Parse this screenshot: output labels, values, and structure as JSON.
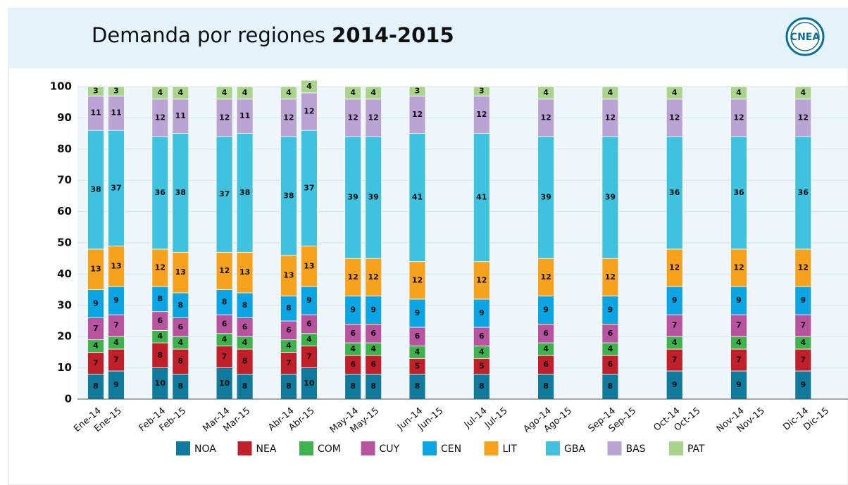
{
  "chart_data": {
    "type": "stacked_bar",
    "title": "Demanda por regiones",
    "title_bold": "2014-2015",
    "logo": "CNEA",
    "categories": [
      "Ene-14",
      "Ene-15",
      "Feb-14",
      "Feb-15",
      "Mar-14",
      "Mar-15",
      "Abr-14",
      "Abr-15",
      "May-14",
      "May-15",
      "Jun-14",
      "Jun-15",
      "Jul-14",
      "Jul-15",
      "Ago-14",
      "Ago-15",
      "Sep-14",
      "Sep-15",
      "Oct-14",
      "Oct-15",
      "Nov-14",
      "Nov-15",
      "Dic-14",
      "Dic-15"
    ],
    "series": [
      {
        "name": "NOA",
        "color": "#0f7a9c",
        "values": [
          8,
          9,
          10,
          8,
          10,
          8,
          8,
          10,
          8,
          8,
          8,
          null,
          8,
          null,
          8,
          null,
          8,
          null,
          9,
          null,
          9,
          null,
          9,
          null
        ]
      },
      {
        "name": "NEA",
        "color": "#c1202b",
        "values": [
          7,
          7,
          8,
          8,
          7,
          8,
          7,
          7,
          6,
          6,
          5,
          null,
          5,
          null,
          6,
          null,
          6,
          null,
          7,
          null,
          7,
          null,
          7,
          null
        ]
      },
      {
        "name": "COM",
        "color": "#3cb44b",
        "values": [
          4,
          4,
          4,
          4,
          4,
          4,
          4,
          4,
          4,
          4,
          4,
          null,
          4,
          null,
          4,
          null,
          4,
          null,
          4,
          null,
          4,
          null,
          4,
          null
        ]
      },
      {
        "name": "CUY",
        "color": "#b8549f",
        "values": [
          7,
          7,
          6,
          6,
          6,
          6,
          6,
          6,
          6,
          6,
          6,
          null,
          6,
          null,
          6,
          null,
          6,
          null,
          7,
          null,
          7,
          null,
          7,
          null
        ]
      },
      {
        "name": "CEN",
        "color": "#0ba5e4",
        "values": [
          9,
          9,
          8,
          8,
          8,
          8,
          8,
          9,
          9,
          9,
          9,
          null,
          9,
          null,
          9,
          null,
          9,
          null,
          9,
          null,
          9,
          null,
          9,
          null
        ]
      },
      {
        "name": "LIT",
        "color": "#f7a21c",
        "values": [
          13,
          13,
          12,
          13,
          12,
          13,
          13,
          13,
          12,
          12,
          12,
          null,
          12,
          null,
          12,
          null,
          12,
          null,
          12,
          null,
          12,
          null,
          12,
          null
        ]
      },
      {
        "name": "GBA",
        "color": "#3ec2df",
        "values": [
          38,
          37,
          36,
          38,
          37,
          38,
          38,
          37,
          39,
          39,
          41,
          null,
          41,
          null,
          39,
          null,
          39,
          null,
          36,
          null,
          36,
          null,
          36,
          null
        ]
      },
      {
        "name": "BAS",
        "color": "#b9a4d3",
        "values": [
          11,
          11,
          12,
          11,
          12,
          11,
          12,
          12,
          12,
          12,
          12,
          null,
          12,
          null,
          12,
          null,
          12,
          null,
          12,
          null,
          12,
          null,
          12,
          null
        ]
      },
      {
        "name": "PAT",
        "color": "#a9d48b",
        "values": [
          3,
          3,
          4,
          4,
          4,
          4,
          4,
          4,
          4,
          4,
          3,
          null,
          3,
          null,
          4,
          null,
          4,
          null,
          4,
          null,
          4,
          null,
          4,
          null
        ]
      }
    ],
    "ylim": [
      0,
      100
    ],
    "yticks": [
      0,
      10,
      20,
      30,
      40,
      50,
      60,
      70,
      80,
      90,
      100
    ],
    "grid": true
  }
}
